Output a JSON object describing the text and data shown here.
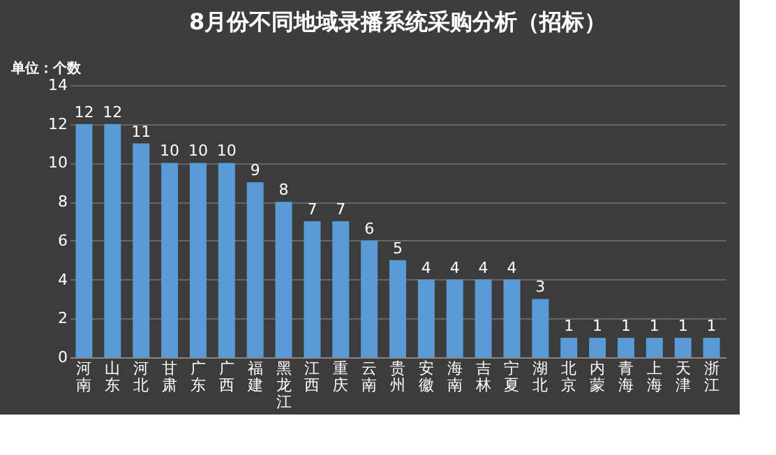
{
  "chart_data": {
    "type": "bar",
    "title": "8月份不同地域录播系统采购分析（招标）",
    "ylabel": "单位：个数",
    "categories": [
      "河南",
      "山东",
      "河北",
      "甘肃",
      "广东",
      "广西",
      "福建",
      "黑龙江",
      "江西",
      "重庆",
      "云南",
      "贵州",
      "安徽",
      "海南",
      "吉林",
      "宁夏",
      "湖北",
      "北京",
      "内蒙",
      "青海",
      "上海",
      "天津",
      "浙江"
    ],
    "values": [
      12,
      12,
      11,
      10,
      10,
      10,
      9,
      8,
      7,
      7,
      6,
      5,
      4,
      4,
      4,
      4,
      3,
      1,
      1,
      1,
      1,
      1,
      1
    ],
    "color": "#5b9bd5",
    "ylim": [
      0,
      14
    ],
    "yticks": [
      0,
      2,
      4,
      6,
      8,
      10,
      12,
      14
    ],
    "grid": "y",
    "data_labels": true
  }
}
